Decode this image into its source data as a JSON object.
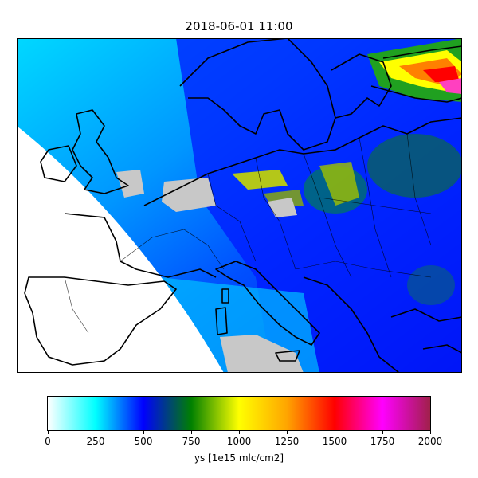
{
  "title": "2018-06-01 11:00",
  "colorbar": {
    "label": "ys [1e15 mlc/cm2]",
    "min": 0,
    "max": 2000,
    "ticks": [
      "0",
      "250",
      "500",
      "750",
      "1000",
      "1250",
      "1500",
      "1750",
      "2000"
    ],
    "colors": [
      "#ffffff",
      "#00ffff",
      "#0000ff",
      "#008000",
      "#ffff00",
      "#ffa500",
      "#ff0000",
      "#ff00ff",
      "#a0204a"
    ]
  },
  "map": {
    "region": "Europe",
    "missing_color": "#c8c8c8",
    "land_outline_color": "#000000"
  }
}
